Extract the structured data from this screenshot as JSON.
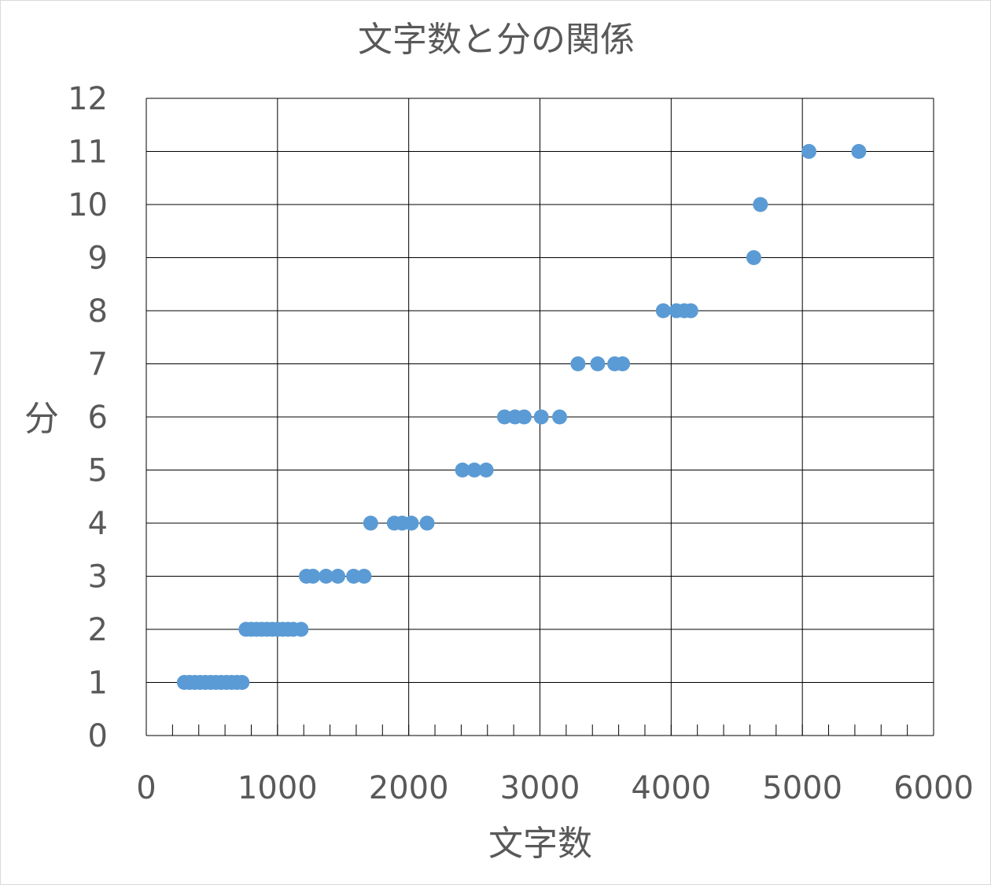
{
  "chart_data": {
    "type": "scatter",
    "title": "文字数と分の関係",
    "xlabel": "文字数",
    "ylabel": "分",
    "xlim": [
      0,
      6000
    ],
    "ylim": [
      0,
      12
    ],
    "xticks": [
      "0",
      "1000",
      "2000",
      "3000",
      "4000",
      "5000",
      "6000"
    ],
    "yticks": [
      "0",
      "1",
      "2",
      "3",
      "4",
      "5",
      "6",
      "7",
      "8",
      "9",
      "10",
      "11",
      "12"
    ],
    "grid": true,
    "legend": "none",
    "marker_color": "#5b9bd5",
    "series": [
      {
        "points": [
          [
            290,
            1
          ],
          [
            330,
            1
          ],
          [
            370,
            1
          ],
          [
            410,
            1
          ],
          [
            450,
            1
          ],
          [
            490,
            1
          ],
          [
            530,
            1
          ],
          [
            570,
            1
          ],
          [
            610,
            1
          ],
          [
            650,
            1
          ],
          [
            690,
            1
          ],
          [
            730,
            1
          ],
          [
            760,
            2
          ],
          [
            800,
            2
          ],
          [
            840,
            2
          ],
          [
            880,
            2
          ],
          [
            920,
            2
          ],
          [
            960,
            2
          ],
          [
            1000,
            2
          ],
          [
            1040,
            2
          ],
          [
            1080,
            2
          ],
          [
            1120,
            2
          ],
          [
            1180,
            2
          ],
          [
            1220,
            3
          ],
          [
            1270,
            3
          ],
          [
            1370,
            3
          ],
          [
            1460,
            3
          ],
          [
            1580,
            3
          ],
          [
            1660,
            3
          ],
          [
            1710,
            4
          ],
          [
            1890,
            4
          ],
          [
            1950,
            4
          ],
          [
            2020,
            4
          ],
          [
            2140,
            4
          ],
          [
            2410,
            5
          ],
          [
            2500,
            5
          ],
          [
            2590,
            5
          ],
          [
            2730,
            6
          ],
          [
            2810,
            6
          ],
          [
            2880,
            6
          ],
          [
            3010,
            6
          ],
          [
            3150,
            6
          ],
          [
            3290,
            7
          ],
          [
            3440,
            7
          ],
          [
            3570,
            7
          ],
          [
            3630,
            7
          ],
          [
            3940,
            8
          ],
          [
            4040,
            8
          ],
          [
            4100,
            8
          ],
          [
            4150,
            8
          ],
          [
            4630,
            9
          ],
          [
            4680,
            10
          ],
          [
            5050,
            11
          ],
          [
            5430,
            11
          ]
        ]
      }
    ]
  }
}
